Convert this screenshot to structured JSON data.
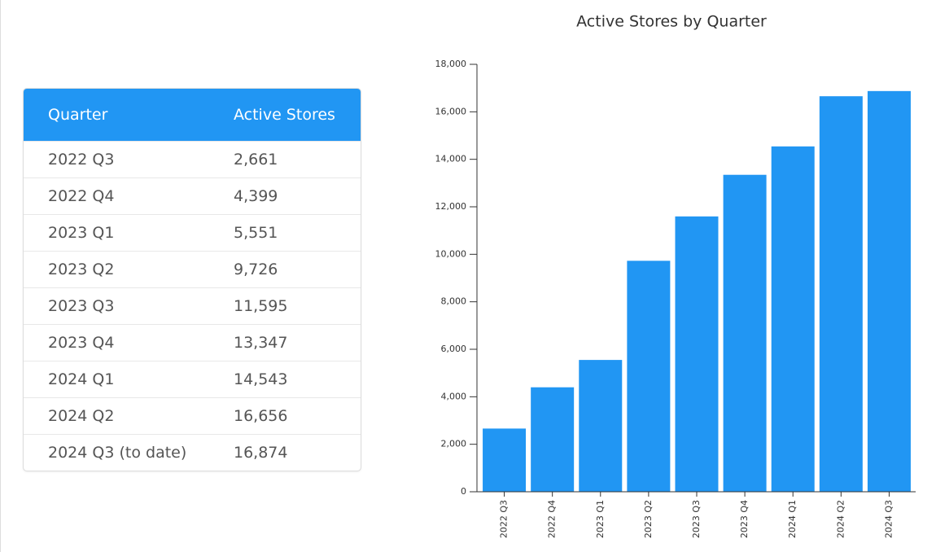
{
  "table": {
    "header": [
      "Quarter",
      "Active Stores"
    ],
    "rows": [
      [
        "2022 Q3",
        "2,661"
      ],
      [
        "2022 Q4",
        "4,399"
      ],
      [
        "2023 Q1",
        "5,551"
      ],
      [
        "2023 Q2",
        "9,726"
      ],
      [
        "2023 Q3",
        "11,595"
      ],
      [
        "2023 Q4",
        "13,347"
      ],
      [
        "2024 Q1",
        "14,543"
      ],
      [
        "2024 Q2",
        "16,656"
      ],
      [
        "2024 Q3 (to date)",
        "16,874"
      ]
    ]
  },
  "chart_data": {
    "type": "bar",
    "title": "Active Stores by Quarter",
    "categories": [
      "2022 Q3",
      "2022 Q4",
      "2023 Q1",
      "2023 Q2",
      "2023 Q3",
      "2023 Q4",
      "2024 Q1",
      "2024 Q2",
      "2024 Q3"
    ],
    "values": [
      2661,
      4399,
      5551,
      9726,
      11595,
      13347,
      14543,
      16656,
      16874
    ],
    "color": "#2196f3",
    "ylim": [
      0,
      18000
    ],
    "yticks": [
      0,
      {
        "value": 2000,
        "label": "2,000"
      },
      {
        "value": 4000,
        "label": "4,000"
      },
      {
        "value": 6000,
        "label": "6,000"
      },
      {
        "value": 8000,
        "label": "8,000"
      },
      {
        "value": 10000,
        "label": "10,000"
      },
      {
        "value": 12000,
        "label": "12,000"
      },
      {
        "value": 14000,
        "label": "14,000"
      },
      {
        "value": 16000,
        "label": "16,000"
      },
      {
        "value": 18000,
        "label": "18,000"
      }
    ],
    "grid": false
  }
}
